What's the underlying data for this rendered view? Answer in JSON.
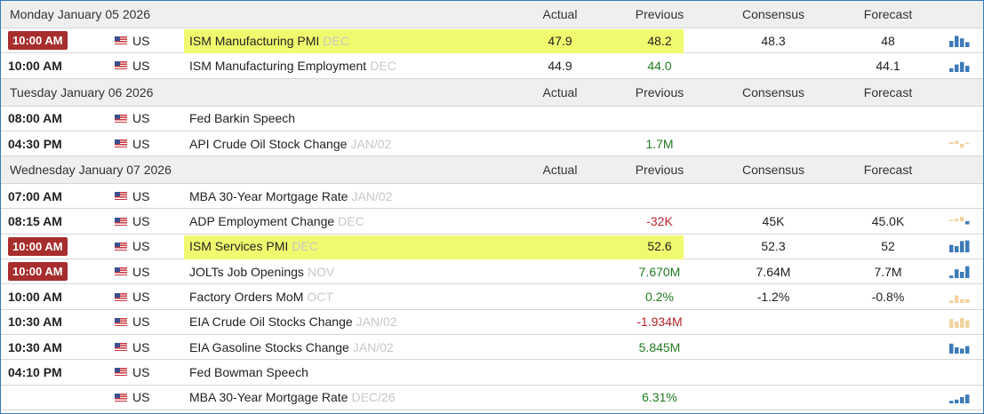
{
  "columns": {
    "actual": "Actual",
    "previous": "Previous",
    "consensus": "Consensus",
    "forecast": "Forecast"
  },
  "colors": {
    "green": "#207a20",
    "red": "#b3232a",
    "highlight": "#f0fa6e",
    "badge": "#a82d2d",
    "spark_blue": "#3d7ab8",
    "spark_tan": "#f2d3a0"
  },
  "days": [
    {
      "date": "Monday January 05 2026",
      "events": [
        {
          "time": "10:00 AM",
          "badge": true,
          "country": "US",
          "name": "ISM Manufacturing PMI",
          "period": "DEC",
          "actual": "47.9",
          "previous": "48.2",
          "previous_color": "plain",
          "consensus": "48.3",
          "forecast": "48",
          "highlight": "full",
          "spark": {
            "color": "blue",
            "bars": [
              0.5,
              0.9,
              0.7,
              0.4
            ]
          }
        },
        {
          "time": "10:00 AM",
          "badge": false,
          "country": "US",
          "name": "ISM Manufacturing Employment",
          "period": "DEC",
          "actual": "44.9",
          "previous": "44.0",
          "previous_color": "green",
          "consensus": "",
          "forecast": "44.1",
          "highlight": "",
          "spark": {
            "color": "blue",
            "bars": [
              0.3,
              0.6,
              0.8,
              0.5
            ]
          }
        }
      ]
    },
    {
      "date": "Tuesday January 06 2026",
      "events": [
        {
          "time": "08:00 AM",
          "badge": false,
          "country": "US",
          "name": "Fed Barkin Speech",
          "period": "",
          "actual": "",
          "previous": "",
          "previous_color": "plain",
          "consensus": "",
          "forecast": "",
          "highlight": "",
          "spark": null
        },
        {
          "time": "04:30 PM",
          "badge": false,
          "country": "US",
          "name": "API Crude Oil Stock Change",
          "period": "JAN/02",
          "actual": "",
          "previous": "1.7M",
          "previous_color": "green",
          "consensus": "",
          "forecast": "",
          "highlight": "",
          "spark": {
            "color": "tan",
            "bars": [
              0.3,
              0.5,
              -0.6,
              0.2
            ]
          }
        }
      ]
    },
    {
      "date": "Wednesday January 07 2026",
      "events": [
        {
          "time": "07:00 AM",
          "badge": false,
          "country": "US",
          "name": "MBA 30-Year Mortgage Rate",
          "period": "JAN/02",
          "actual": "",
          "previous": "",
          "previous_color": "plain",
          "consensus": "",
          "forecast": "",
          "highlight": "",
          "spark": null
        },
        {
          "time": "08:15 AM",
          "badge": false,
          "country": "US",
          "name": "ADP Employment Change",
          "period": "DEC",
          "actual": "",
          "previous": "-32K",
          "previous_color": "red",
          "consensus": "45K",
          "forecast": "45.0K",
          "highlight": "",
          "spark": {
            "color": "mixed",
            "bars": [
              0.2,
              0.4,
              0.7,
              -0.5
            ]
          }
        },
        {
          "time": "10:00 AM",
          "badge": true,
          "country": "US",
          "name": "ISM Services PMI",
          "period": "DEC",
          "actual": "",
          "previous": "52.6",
          "previous_color": "plain",
          "consensus": "52.3",
          "forecast": "52",
          "highlight": "full",
          "spark": {
            "color": "blue",
            "bars": [
              0.6,
              0.5,
              0.9,
              0.95
            ]
          }
        },
        {
          "time": "10:00 AM",
          "badge": true,
          "country": "US",
          "name": "JOLTs Job Openings",
          "period": "NOV",
          "actual": "",
          "previous": "7.670M",
          "previous_color": "green",
          "consensus": "7.64M",
          "forecast": "7.7M",
          "highlight": "",
          "spark": {
            "color": "blue",
            "bars": [
              0.2,
              0.7,
              0.5,
              0.95
            ]
          }
        },
        {
          "time": "10:00 AM",
          "badge": false,
          "country": "US",
          "name": "Factory Orders MoM",
          "period": "OCT",
          "actual": "",
          "previous": "0.2%",
          "previous_color": "green",
          "consensus": "-1.2%",
          "forecast": "-0.8%",
          "highlight": "",
          "spark": {
            "color": "tan",
            "bars": [
              0.2,
              0.6,
              0.3,
              0.3
            ]
          }
        },
        {
          "time": "10:30 AM",
          "badge": false,
          "country": "US",
          "name": "EIA Crude Oil Stocks Change",
          "period": "JAN/02",
          "actual": "",
          "previous": "-1.934M",
          "previous_color": "red",
          "consensus": "",
          "forecast": "",
          "highlight": "",
          "spark": {
            "color": "tan",
            "bars": [
              0.7,
              0.5,
              0.8,
              0.6
            ]
          }
        },
        {
          "time": "10:30 AM",
          "badge": false,
          "country": "US",
          "name": "EIA Gasoline Stocks Change",
          "period": "JAN/02",
          "actual": "",
          "previous": "5.845M",
          "previous_color": "green",
          "consensus": "",
          "forecast": "",
          "highlight": "",
          "spark": {
            "color": "blue",
            "bars": [
              0.8,
              0.5,
              0.4,
              0.6
            ]
          }
        },
        {
          "time": "04:10 PM",
          "badge": false,
          "country": "US",
          "name": "Fed Bowman Speech",
          "period": "",
          "actual": "",
          "previous": "",
          "previous_color": "plain",
          "consensus": "",
          "forecast": "",
          "highlight": "",
          "spark": null
        },
        {
          "time": "",
          "badge": false,
          "country": "US",
          "name": "MBA 30-Year Mortgage Rate",
          "period": "DEC/26",
          "actual": "",
          "previous": "6.31%",
          "previous_color": "green",
          "consensus": "",
          "forecast": "",
          "highlight": "",
          "spark": {
            "color": "blue",
            "bars": [
              0.2,
              0.3,
              0.5,
              0.7
            ]
          }
        }
      ]
    }
  ]
}
